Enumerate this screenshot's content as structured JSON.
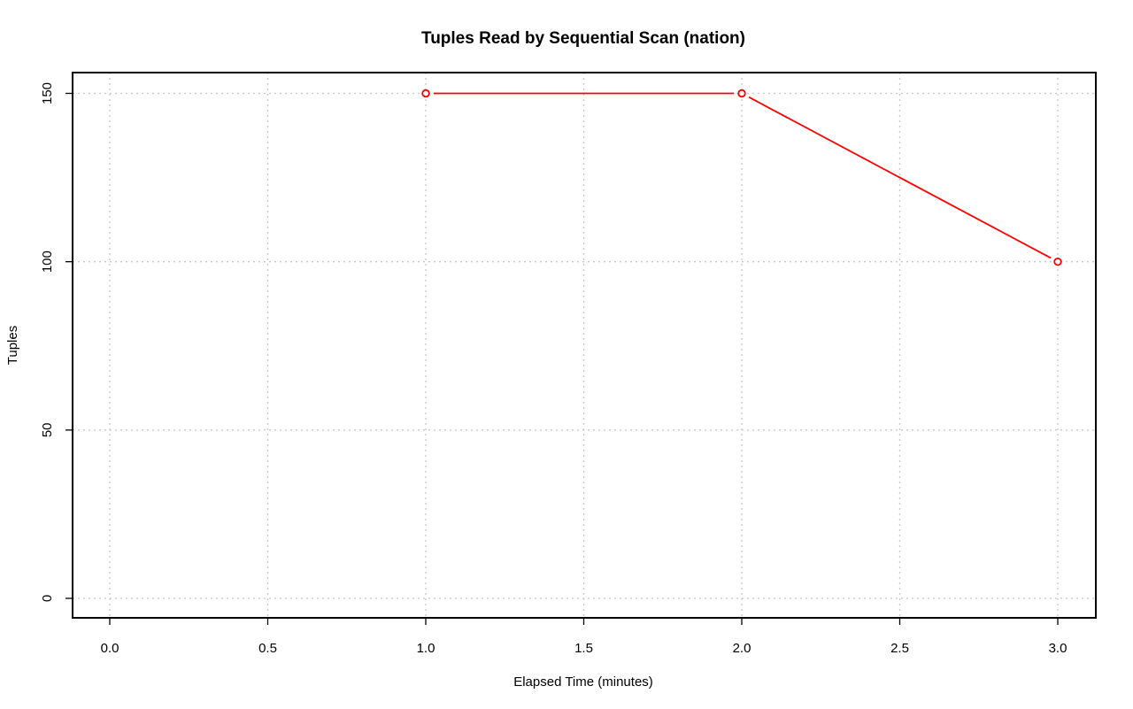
{
  "chart_data": {
    "type": "line",
    "title": "Tuples Read by Sequential Scan (nation)",
    "xlabel": "Elapsed Time (minutes)",
    "ylabel": "Tuples",
    "xlim": [
      0.0,
      3.0
    ],
    "ylim": [
      0,
      150
    ],
    "x_ticks": [
      "0.0",
      "0.5",
      "1.0",
      "1.5",
      "2.0",
      "2.5",
      "3.0"
    ],
    "y_ticks": [
      "0",
      "50",
      "100",
      "150"
    ],
    "grid": true,
    "series": [
      {
        "color": "#ff0000",
        "marker": "open-circle",
        "x": [
          1.0,
          2.0,
          3.0
        ],
        "y": [
          150,
          150,
          100
        ]
      }
    ]
  }
}
